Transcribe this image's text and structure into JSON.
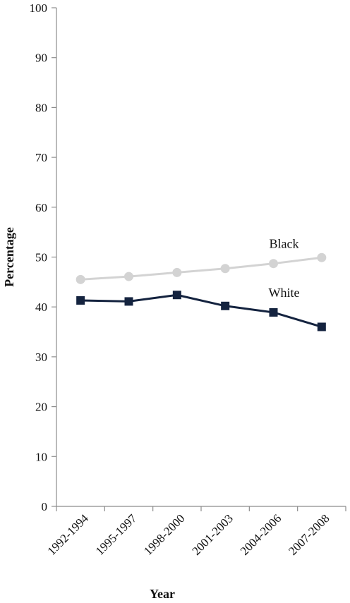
{
  "chart_data": {
    "type": "line",
    "categories": [
      "1992-1994",
      "1995-1997",
      "1998-2000",
      "2001-2003",
      "2004-2006",
      "2007-2008"
    ],
    "series": [
      {
        "name": "Black",
        "values": [
          45.5,
          46.1,
          46.9,
          47.7,
          48.7,
          49.9
        ],
        "color": "#d3d3d3",
        "marker": "circle"
      },
      {
        "name": "White",
        "values": [
          41.3,
          41.1,
          42.4,
          40.2,
          38.9,
          36.0
        ],
        "color": "#14233f",
        "marker": "square"
      }
    ],
    "xlabel": "Year",
    "ylabel": "Percentage",
    "ylim": [
      0,
      100
    ],
    "yticks": [
      0,
      10,
      20,
      30,
      40,
      50,
      60,
      70,
      80,
      90,
      100
    ],
    "grid": false,
    "legend": "direct labels"
  }
}
